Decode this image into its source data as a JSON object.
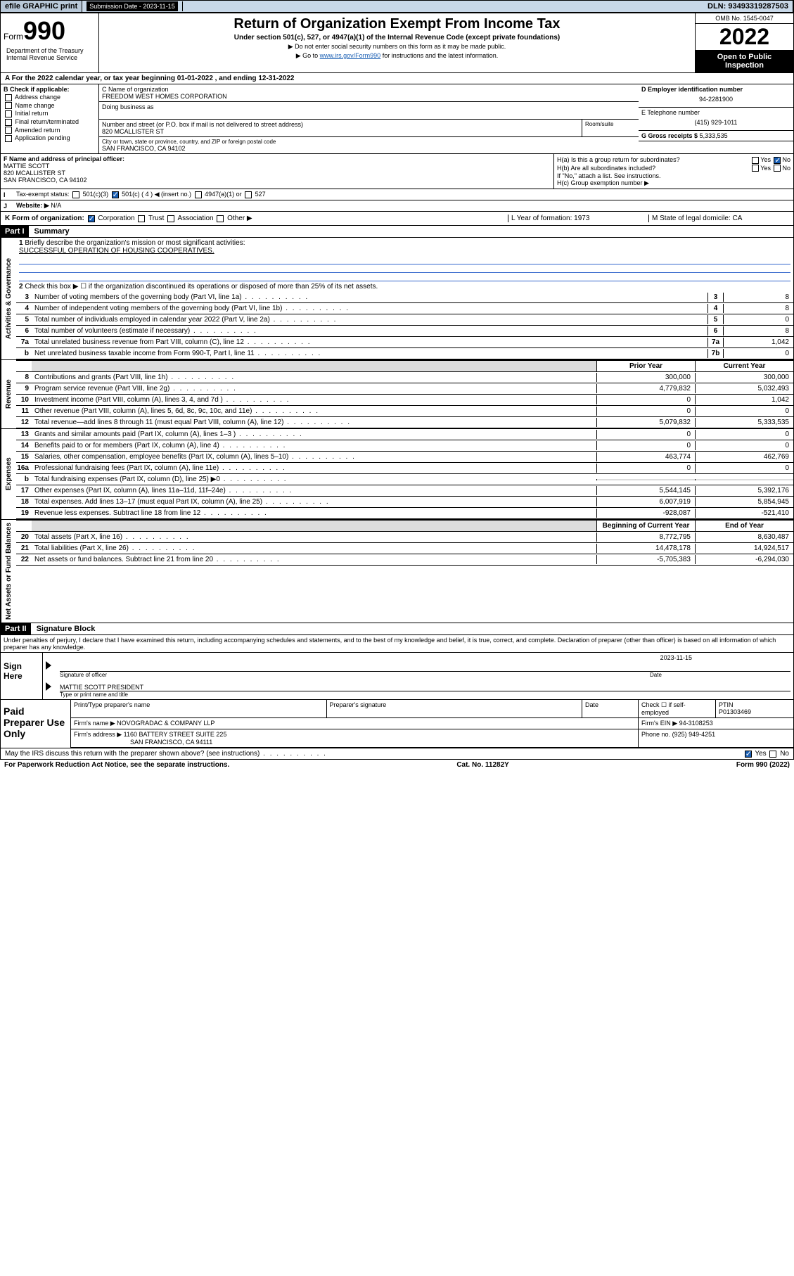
{
  "topbar": {
    "efile": "efile GRAPHIC print",
    "sub_label": "Submission Date - 2023-11-15",
    "dln": "DLN: 93493319287503"
  },
  "header": {
    "form_prefix": "Form",
    "form_num": "990",
    "title": "Return of Organization Exempt From Income Tax",
    "subtitle": "Under section 501(c), 527, or 4947(a)(1) of the Internal Revenue Code (except private foundations)",
    "note1": "▶ Do not enter social security numbers on this form as it may be made public.",
    "note2_pre": "▶ Go to ",
    "note2_link": "www.irs.gov/Form990",
    "note2_post": " for instructions and the latest information.",
    "omb": "OMB No. 1545-0047",
    "year": "2022",
    "open": "Open to Public Inspection",
    "dept": "Department of the Treasury Internal Revenue Service"
  },
  "row_a": "A For the 2022 calendar year, or tax year beginning 01-01-2022   , and ending 12-31-2022",
  "b": {
    "label": "B Check if applicable:",
    "items": [
      "Address change",
      "Name change",
      "Initial return",
      "Final return/terminated",
      "Amended return",
      "Application pending"
    ]
  },
  "c": {
    "name_label": "C Name of organization",
    "name": "FREEDOM WEST HOMES CORPORATION",
    "dba_label": "Doing business as",
    "addr_label": "Number and street (or P.O. box if mail is not delivered to street address)",
    "room_label": "Room/suite",
    "addr": "820 MCALLISTER ST",
    "city_label": "City or town, state or province, country, and ZIP or foreign postal code",
    "city": "SAN FRANCISCO, CA  94102"
  },
  "d": {
    "ein_label": "D Employer identification number",
    "ein": "94-2281900",
    "tel_label": "E Telephone number",
    "tel": "(415) 929-1011",
    "gross_label": "G Gross receipts $",
    "gross": "5,333,535"
  },
  "f": {
    "label": "F Name and address of principal officer:",
    "name": "MATTIE SCOTT",
    "addr1": "820 MCALLISTER ST",
    "addr2": "SAN FRANCISCO, CA  94102"
  },
  "h": {
    "ha": "H(a)  Is this a group return for subordinates?",
    "ha_yes": "Yes",
    "ha_no": "No",
    "hb": "H(b)  Are all subordinates included?",
    "hb_yes": "Yes",
    "hb_no": "No",
    "hb_note": "If \"No,\" attach a list. See instructions.",
    "hc": "H(c)  Group exemption number ▶"
  },
  "i": {
    "label": "I",
    "tax_label": "Tax-exempt status:",
    "opts": [
      "501(c)(3)",
      "501(c) ( 4 ) ◀ (insert no.)",
      "4947(a)(1) or",
      "527"
    ]
  },
  "j": {
    "label": "J",
    "web_label": "Website: ▶",
    "web": "N/A"
  },
  "k": {
    "label": "K Form of organization:",
    "opts": [
      "Corporation",
      "Trust",
      "Association",
      "Other ▶"
    ],
    "l": "L Year of formation: 1973",
    "m": "M State of legal domicile: CA"
  },
  "part1": {
    "hdr": "Part I",
    "title": "Summary"
  },
  "gov": {
    "label": "Activities & Governance",
    "l1": "Briefly describe the organization's mission or most significant activities:",
    "l1_text": "SUCCESSFUL OPERATION OF HOUSING COOPERATIVES.",
    "l2": "Check this box ▶ ☐  if the organization discontinued its operations or disposed of more than 25% of its net assets.",
    "lines": [
      {
        "n": "3",
        "t": "Number of voting members of the governing body (Part VI, line 1a)",
        "b": "3",
        "v": "8"
      },
      {
        "n": "4",
        "t": "Number of independent voting members of the governing body (Part VI, line 1b)",
        "b": "4",
        "v": "8"
      },
      {
        "n": "5",
        "t": "Total number of individuals employed in calendar year 2022 (Part V, line 2a)",
        "b": "5",
        "v": "0"
      },
      {
        "n": "6",
        "t": "Total number of volunteers (estimate if necessary)",
        "b": "6",
        "v": "8"
      },
      {
        "n": "7a",
        "t": "Total unrelated business revenue from Part VIII, column (C), line 12",
        "b": "7a",
        "v": "1,042"
      },
      {
        "n": "b",
        "t": "Net unrelated business taxable income from Form 990-T, Part I, line 11",
        "b": "7b",
        "v": "0"
      }
    ]
  },
  "two_hdr": {
    "py": "Prior Year",
    "cy": "Current Year"
  },
  "rev": {
    "label": "Revenue",
    "lines": [
      {
        "n": "8",
        "t": "Contributions and grants (Part VIII, line 1h)",
        "v1": "300,000",
        "v2": "300,000"
      },
      {
        "n": "9",
        "t": "Program service revenue (Part VIII, line 2g)",
        "v1": "4,779,832",
        "v2": "5,032,493"
      },
      {
        "n": "10",
        "t": "Investment income (Part VIII, column (A), lines 3, 4, and 7d )",
        "v1": "0",
        "v2": "1,042"
      },
      {
        "n": "11",
        "t": "Other revenue (Part VIII, column (A), lines 5, 6d, 8c, 9c, 10c, and 11e)",
        "v1": "0",
        "v2": "0"
      },
      {
        "n": "12",
        "t": "Total revenue—add lines 8 through 11 (must equal Part VIII, column (A), line 12)",
        "v1": "5,079,832",
        "v2": "5,333,535"
      }
    ]
  },
  "exp": {
    "label": "Expenses",
    "lines": [
      {
        "n": "13",
        "t": "Grants and similar amounts paid (Part IX, column (A), lines 1–3 )",
        "v1": "0",
        "v2": "0"
      },
      {
        "n": "14",
        "t": "Benefits paid to or for members (Part IX, column (A), line 4)",
        "v1": "0",
        "v2": "0"
      },
      {
        "n": "15",
        "t": "Salaries, other compensation, employee benefits (Part IX, column (A), lines 5–10)",
        "v1": "463,774",
        "v2": "462,769"
      },
      {
        "n": "16a",
        "t": "Professional fundraising fees (Part IX, column (A), line 11e)",
        "v1": "0",
        "v2": "0"
      },
      {
        "n": "b",
        "t": "Total fundraising expenses (Part IX, column (D), line 25) ▶0",
        "v1": "",
        "v2": "",
        "gray": true
      },
      {
        "n": "17",
        "t": "Other expenses (Part IX, column (A), lines 11a–11d, 11f–24e)",
        "v1": "5,544,145",
        "v2": "5,392,176"
      },
      {
        "n": "18",
        "t": "Total expenses. Add lines 13–17 (must equal Part IX, column (A), line 25)",
        "v1": "6,007,919",
        "v2": "5,854,945"
      },
      {
        "n": "19",
        "t": "Revenue less expenses. Subtract line 18 from line 12",
        "v1": "-928,087",
        "v2": "-521,410"
      }
    ]
  },
  "na_hdr": {
    "b": "Beginning of Current Year",
    "e": "End of Year"
  },
  "na": {
    "label": "Net Assets or Fund Balances",
    "lines": [
      {
        "n": "20",
        "t": "Total assets (Part X, line 16)",
        "v1": "8,772,795",
        "v2": "8,630,487"
      },
      {
        "n": "21",
        "t": "Total liabilities (Part X, line 26)",
        "v1": "14,478,178",
        "v2": "14,924,517"
      },
      {
        "n": "22",
        "t": "Net assets or fund balances. Subtract line 21 from line 20",
        "v1": "-5,705,383",
        "v2": "-6,294,030"
      }
    ]
  },
  "part2": {
    "hdr": "Part II",
    "title": "Signature Block"
  },
  "sig": {
    "perjury": "Under penalties of perjury, I declare that I have examined this return, including accompanying schedules and statements, and to the best of my knowledge and belief, it is true, correct, and complete. Declaration of preparer (other than officer) is based on all information of which preparer has any knowledge.",
    "sign_here": "Sign Here",
    "sig_officer": "Signature of officer",
    "date": "Date",
    "date_val": "2023-11-15",
    "name_title": "MATTIE SCOTT PRESIDENT",
    "type_name": "Type or print name and title"
  },
  "paid": {
    "label": "Paid Preparer Use Only",
    "r1": [
      "Print/Type preparer's name",
      "Preparer's signature",
      "Date",
      "Check ☐ if self-employed",
      "PTIN\nP01303469"
    ],
    "r2_label": "Firm's name   ▶",
    "r2_val": "NOVOGRADAC & COMPANY LLP",
    "r2_ein_label": "Firm's EIN ▶",
    "r2_ein": "94-3108253",
    "r3_label": "Firm's address ▶",
    "r3_val": "1160 BATTERY STREET SUITE 225",
    "r3_city": "SAN FRANCISCO, CA  94111",
    "r3_phone_label": "Phone no.",
    "r3_phone": "(925) 949-4251"
  },
  "may": {
    "text": "May the IRS discuss this return with the preparer shown above? (see instructions)",
    "yes": "Yes",
    "no": "No"
  },
  "footer": {
    "left": "For Paperwork Reduction Act Notice, see the separate instructions.",
    "mid": "Cat. No. 11282Y",
    "right": "Form 990 (2022)"
  }
}
